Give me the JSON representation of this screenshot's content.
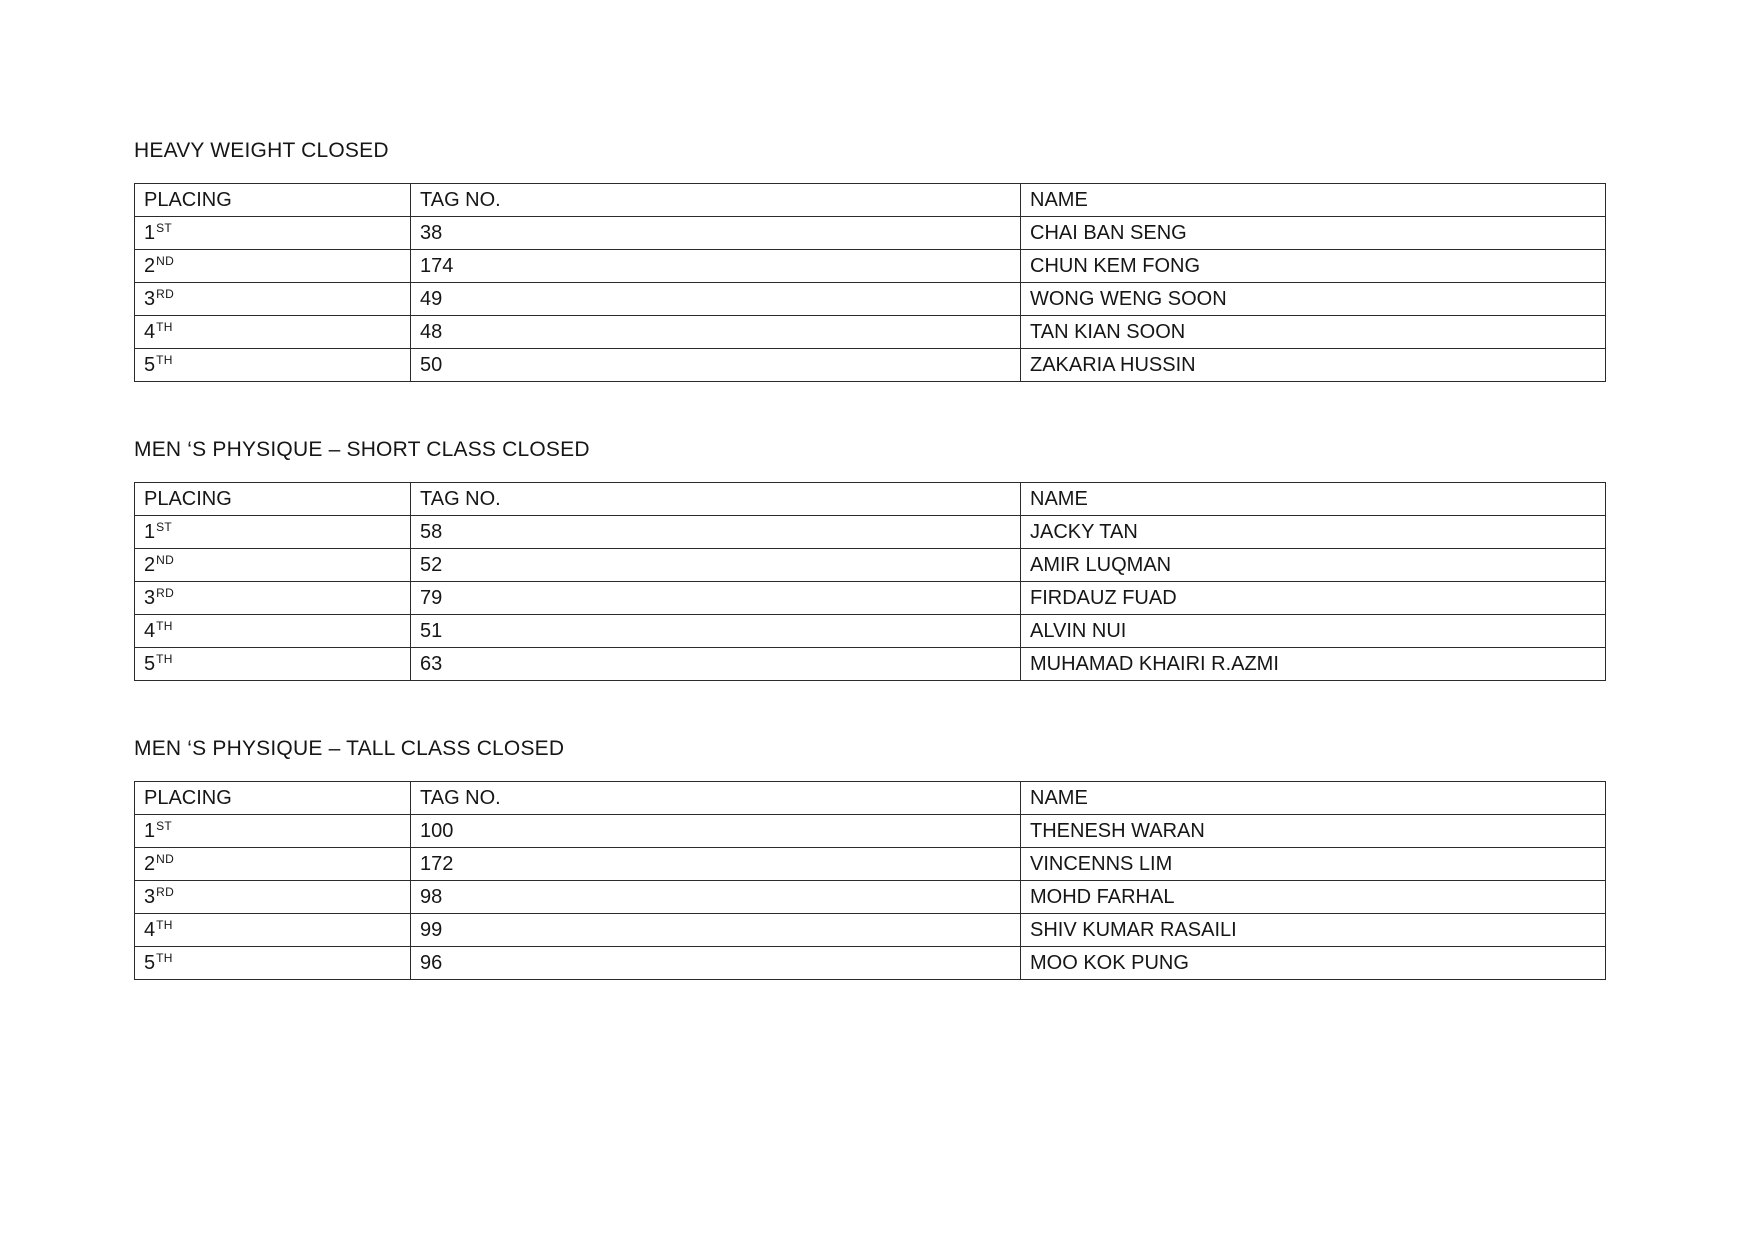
{
  "sections": [
    {
      "heading": "HEAVY WEIGHT CLOSED",
      "columns": {
        "placing": "PLACING",
        "tag": "TAG NO.",
        "name": "NAME"
      },
      "rows": [
        {
          "place": "1",
          "ordinal": "ST",
          "tag": "38",
          "name": "CHAI BAN SENG"
        },
        {
          "place": "2",
          "ordinal": "ND",
          "tag": "174",
          "name": "CHUN KEM FONG"
        },
        {
          "place": "3",
          "ordinal": "RD",
          "tag": "49",
          "name": "WONG WENG SOON"
        },
        {
          "place": "4",
          "ordinal": "TH",
          "tag": "48",
          "name": "TAN KIAN SOON"
        },
        {
          "place": "5",
          "ordinal": "TH",
          "tag": "50",
          "name": "ZAKARIA HUSSIN"
        }
      ]
    },
    {
      "heading": "MEN ‘S PHYSIQUE – SHORT CLASS CLOSED",
      "columns": {
        "placing": "PLACING",
        "tag": "TAG NO.",
        "name": "NAME"
      },
      "rows": [
        {
          "place": "1",
          "ordinal": "ST",
          "tag": "58",
          "name": "JACKY TAN"
        },
        {
          "place": "2",
          "ordinal": "ND",
          "tag": "52",
          "name": "AMIR LUQMAN"
        },
        {
          "place": "3",
          "ordinal": "RD",
          "tag": "79",
          "name": "FIRDAUZ FUAD"
        },
        {
          "place": "4",
          "ordinal": "TH",
          "tag": "51",
          "name": "ALVIN NUI"
        },
        {
          "place": "5",
          "ordinal": "TH",
          "tag": "63",
          "name": "MUHAMAD KHAIRI R.AZMI"
        }
      ]
    },
    {
      "heading": "MEN ‘S PHYSIQUE – TALL CLASS CLOSED",
      "columns": {
        "placing": "PLACING",
        "tag": "TAG NO.",
        "name": "NAME"
      },
      "rows": [
        {
          "place": "1",
          "ordinal": "ST",
          "tag": "100",
          "name": "THENESH WARAN"
        },
        {
          "place": "2",
          "ordinal": "ND",
          "tag": "172",
          "name": "VINCENNS LIM"
        },
        {
          "place": "3",
          "ordinal": "RD",
          "tag": "98",
          "name": "MOHD FARHAL"
        },
        {
          "place": "4",
          "ordinal": "TH",
          "tag": "99",
          "name": "SHIV KUMAR RASAILI"
        },
        {
          "place": "5",
          "ordinal": "TH",
          "tag": "96",
          "name": "MOO KOK PUNG"
        }
      ]
    }
  ]
}
